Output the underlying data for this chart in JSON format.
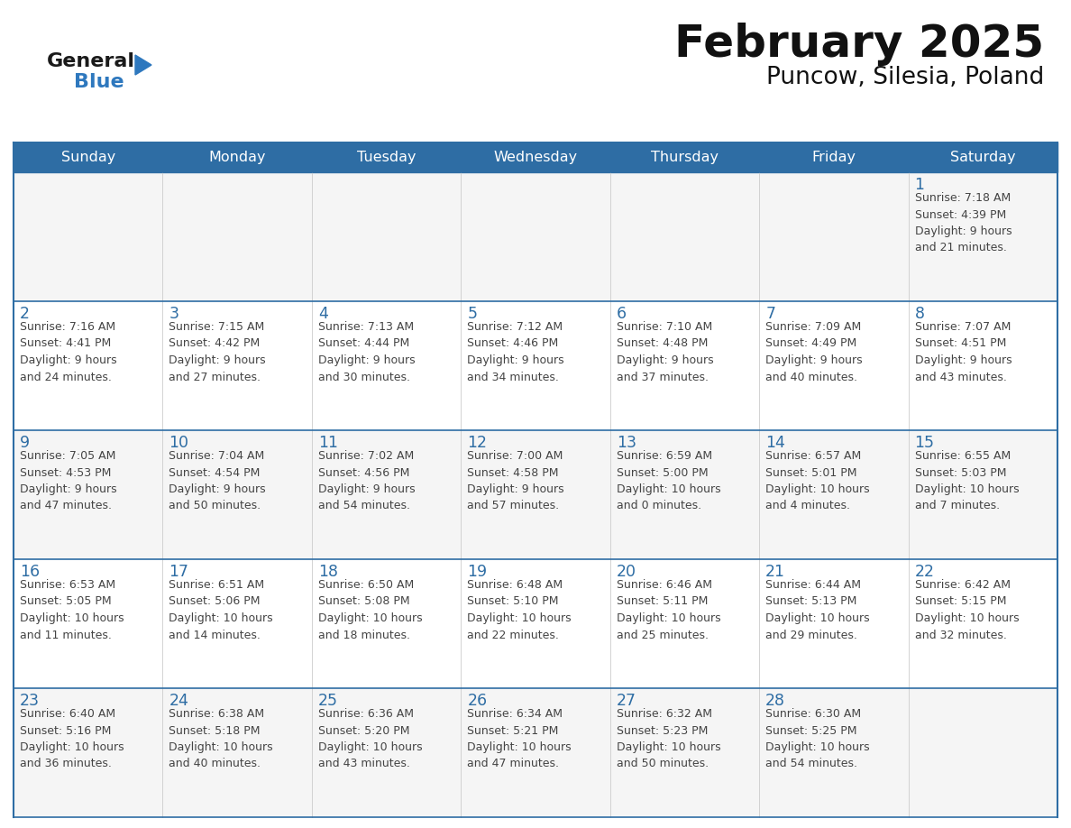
{
  "title": "February 2025",
  "subtitle": "Puncow, Silesia, Poland",
  "days_of_week": [
    "Sunday",
    "Monday",
    "Tuesday",
    "Wednesday",
    "Thursday",
    "Friday",
    "Saturday"
  ],
  "header_bg": "#2E6DA4",
  "header_text": "#FFFFFF",
  "cell_bg_odd": "#F5F5F5",
  "cell_bg_even": "#FFFFFF",
  "day_number_color": "#2E6DA4",
  "info_text_color": "#444444",
  "line_color": "#2E6DA4",
  "logo_general_color": "#1a1a1a",
  "logo_blue_color": "#2E78BE",
  "calendar_data": [
    [
      {
        "day": null,
        "info": ""
      },
      {
        "day": null,
        "info": ""
      },
      {
        "day": null,
        "info": ""
      },
      {
        "day": null,
        "info": ""
      },
      {
        "day": null,
        "info": ""
      },
      {
        "day": null,
        "info": ""
      },
      {
        "day": 1,
        "info": "Sunrise: 7:18 AM\nSunset: 4:39 PM\nDaylight: 9 hours\nand 21 minutes."
      }
    ],
    [
      {
        "day": 2,
        "info": "Sunrise: 7:16 AM\nSunset: 4:41 PM\nDaylight: 9 hours\nand 24 minutes."
      },
      {
        "day": 3,
        "info": "Sunrise: 7:15 AM\nSunset: 4:42 PM\nDaylight: 9 hours\nand 27 minutes."
      },
      {
        "day": 4,
        "info": "Sunrise: 7:13 AM\nSunset: 4:44 PM\nDaylight: 9 hours\nand 30 minutes."
      },
      {
        "day": 5,
        "info": "Sunrise: 7:12 AM\nSunset: 4:46 PM\nDaylight: 9 hours\nand 34 minutes."
      },
      {
        "day": 6,
        "info": "Sunrise: 7:10 AM\nSunset: 4:48 PM\nDaylight: 9 hours\nand 37 minutes."
      },
      {
        "day": 7,
        "info": "Sunrise: 7:09 AM\nSunset: 4:49 PM\nDaylight: 9 hours\nand 40 minutes."
      },
      {
        "day": 8,
        "info": "Sunrise: 7:07 AM\nSunset: 4:51 PM\nDaylight: 9 hours\nand 43 minutes."
      }
    ],
    [
      {
        "day": 9,
        "info": "Sunrise: 7:05 AM\nSunset: 4:53 PM\nDaylight: 9 hours\nand 47 minutes."
      },
      {
        "day": 10,
        "info": "Sunrise: 7:04 AM\nSunset: 4:54 PM\nDaylight: 9 hours\nand 50 minutes."
      },
      {
        "day": 11,
        "info": "Sunrise: 7:02 AM\nSunset: 4:56 PM\nDaylight: 9 hours\nand 54 minutes."
      },
      {
        "day": 12,
        "info": "Sunrise: 7:00 AM\nSunset: 4:58 PM\nDaylight: 9 hours\nand 57 minutes."
      },
      {
        "day": 13,
        "info": "Sunrise: 6:59 AM\nSunset: 5:00 PM\nDaylight: 10 hours\nand 0 minutes."
      },
      {
        "day": 14,
        "info": "Sunrise: 6:57 AM\nSunset: 5:01 PM\nDaylight: 10 hours\nand 4 minutes."
      },
      {
        "day": 15,
        "info": "Sunrise: 6:55 AM\nSunset: 5:03 PM\nDaylight: 10 hours\nand 7 minutes."
      }
    ],
    [
      {
        "day": 16,
        "info": "Sunrise: 6:53 AM\nSunset: 5:05 PM\nDaylight: 10 hours\nand 11 minutes."
      },
      {
        "day": 17,
        "info": "Sunrise: 6:51 AM\nSunset: 5:06 PM\nDaylight: 10 hours\nand 14 minutes."
      },
      {
        "day": 18,
        "info": "Sunrise: 6:50 AM\nSunset: 5:08 PM\nDaylight: 10 hours\nand 18 minutes."
      },
      {
        "day": 19,
        "info": "Sunrise: 6:48 AM\nSunset: 5:10 PM\nDaylight: 10 hours\nand 22 minutes."
      },
      {
        "day": 20,
        "info": "Sunrise: 6:46 AM\nSunset: 5:11 PM\nDaylight: 10 hours\nand 25 minutes."
      },
      {
        "day": 21,
        "info": "Sunrise: 6:44 AM\nSunset: 5:13 PM\nDaylight: 10 hours\nand 29 minutes."
      },
      {
        "day": 22,
        "info": "Sunrise: 6:42 AM\nSunset: 5:15 PM\nDaylight: 10 hours\nand 32 minutes."
      }
    ],
    [
      {
        "day": 23,
        "info": "Sunrise: 6:40 AM\nSunset: 5:16 PM\nDaylight: 10 hours\nand 36 minutes."
      },
      {
        "day": 24,
        "info": "Sunrise: 6:38 AM\nSunset: 5:18 PM\nDaylight: 10 hours\nand 40 minutes."
      },
      {
        "day": 25,
        "info": "Sunrise: 6:36 AM\nSunset: 5:20 PM\nDaylight: 10 hours\nand 43 minutes."
      },
      {
        "day": 26,
        "info": "Sunrise: 6:34 AM\nSunset: 5:21 PM\nDaylight: 10 hours\nand 47 minutes."
      },
      {
        "day": 27,
        "info": "Sunrise: 6:32 AM\nSunset: 5:23 PM\nDaylight: 10 hours\nand 50 minutes."
      },
      {
        "day": 28,
        "info": "Sunrise: 6:30 AM\nSunset: 5:25 PM\nDaylight: 10 hours\nand 54 minutes."
      },
      {
        "day": null,
        "info": ""
      }
    ]
  ]
}
